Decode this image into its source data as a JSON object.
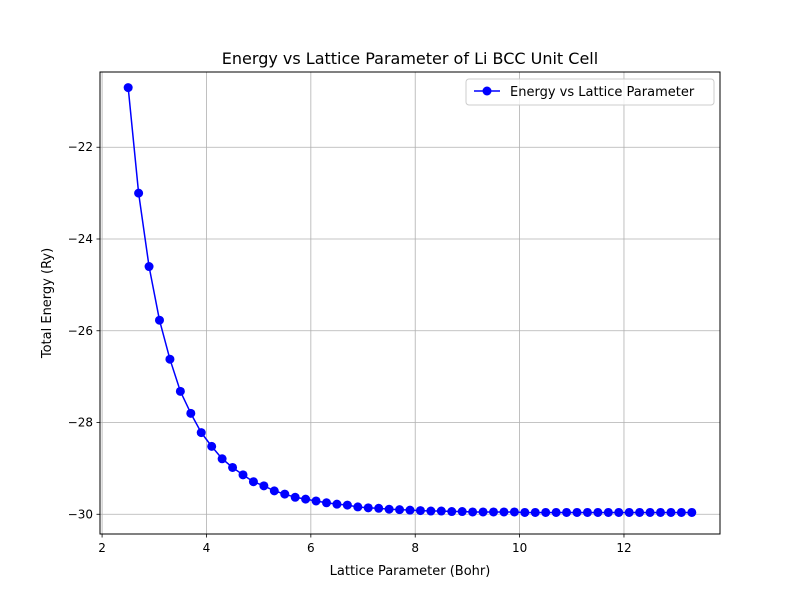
{
  "chart_data": {
    "type": "line",
    "title": "Energy vs Lattice Parameter of Li BCC Unit Cell",
    "xlabel": "Lattice Parameter (Bohr)",
    "ylabel": "Total Energy (Ry)",
    "xlim": [
      1.96,
      13.84
    ],
    "ylim": [
      -30.43,
      -20.36
    ],
    "xticks": [
      2,
      4,
      6,
      8,
      10,
      12
    ],
    "yticks": [
      -22,
      -24,
      -26,
      -28,
      -30
    ],
    "xtick_labels": [
      "2",
      "4",
      "6",
      "8",
      "10",
      "12"
    ],
    "ytick_labels": [
      "−22",
      "−24",
      "−26",
      "−28",
      "−30"
    ],
    "grid": true,
    "legend_position": "top-right",
    "colors": {
      "series": "#0000ff",
      "grid": "#b0b0b0"
    },
    "series": [
      {
        "name": "Energy vs Lattice Parameter",
        "marker": "circle",
        "x": [
          2.5,
          2.7,
          2.9,
          3.1,
          3.3,
          3.5,
          3.7,
          3.9,
          4.1,
          4.3,
          4.5,
          4.7,
          4.9,
          5.1,
          5.3,
          5.5,
          5.7,
          5.9,
          6.1,
          6.3,
          6.5,
          6.7,
          6.9,
          7.1,
          7.3,
          7.5,
          7.7,
          7.9,
          8.1,
          8.3,
          8.5,
          8.7,
          8.9,
          9.1,
          9.3,
          9.5,
          9.7,
          9.9,
          10.1,
          10.3,
          10.5,
          10.7,
          10.9,
          11.1,
          11.3,
          11.5,
          11.7,
          11.9,
          12.1,
          12.3,
          12.5,
          12.7,
          12.9,
          13.1,
          13.3
        ],
        "y": [
          -20.7,
          -23.0,
          -24.6,
          -25.77,
          -26.62,
          -27.32,
          -27.8,
          -28.22,
          -28.52,
          -28.79,
          -28.98,
          -29.14,
          -29.29,
          -29.38,
          -29.49,
          -29.56,
          -29.63,
          -29.67,
          -29.71,
          -29.75,
          -29.78,
          -29.8,
          -29.84,
          -29.86,
          -29.87,
          -29.89,
          -29.9,
          -29.91,
          -29.92,
          -29.93,
          -29.93,
          -29.94,
          -29.94,
          -29.95,
          -29.95,
          -29.95,
          -29.95,
          -29.95,
          -29.96,
          -29.96,
          -29.96,
          -29.96,
          -29.96,
          -29.96,
          -29.96,
          -29.96,
          -29.96,
          -29.96,
          -29.96,
          -29.96,
          -29.96,
          -29.96,
          -29.96,
          -29.96,
          -29.96
        ]
      }
    ]
  }
}
